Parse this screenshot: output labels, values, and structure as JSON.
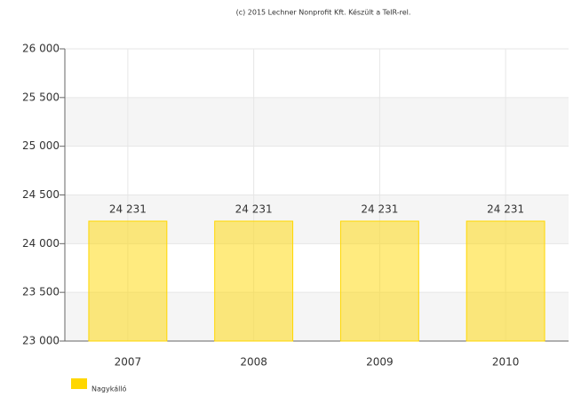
{
  "chart_data": {
    "type": "bar",
    "credits": "(c) 2015 Lechner Nonprofit Kft. Készült a TeIR-rel.",
    "categories": [
      "2007",
      "2008",
      "2009",
      "2010"
    ],
    "series": [
      {
        "name": "Nagykálló",
        "color": "#ffd700",
        "values": [
          24231,
          24231,
          24231,
          24231
        ],
        "value_labels": [
          "24 231",
          "24 231",
          "24 231",
          "24 231"
        ]
      }
    ],
    "ylim": [
      23000,
      26000
    ],
    "yticks": [
      {
        "value": 23000,
        "label": "23 000"
      },
      {
        "value": 23500,
        "label": "23 500"
      },
      {
        "value": 24000,
        "label": "24 000"
      },
      {
        "value": 24500,
        "label": "24 500"
      },
      {
        "value": 25000,
        "label": "25 000"
      },
      {
        "value": 25500,
        "label": "25 500"
      },
      {
        "value": 26000,
        "label": "26 000"
      }
    ],
    "grid": true,
    "alternate_bands": true,
    "legend": "bottom-left"
  }
}
